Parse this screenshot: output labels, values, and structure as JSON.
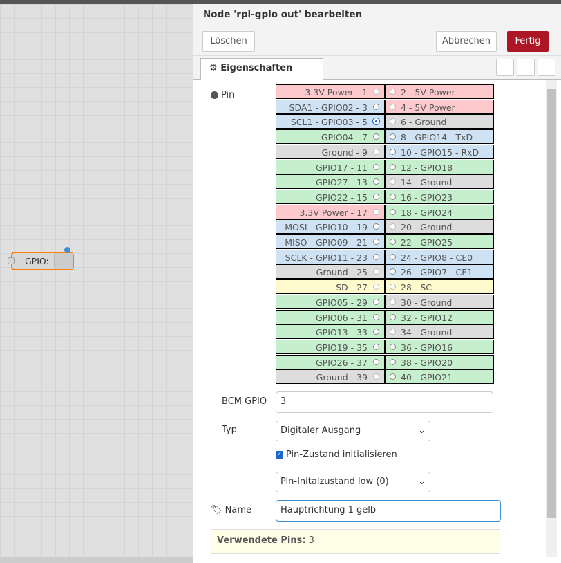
{
  "header": {
    "title": "Node 'rpi-gpio out' bearbeiten"
  },
  "buttons": {
    "delete": "Löschen",
    "cancel": "Abbrechen",
    "done": "Fertig"
  },
  "tabs": {
    "properties": "Eigenschaften"
  },
  "form": {
    "pin_label": "Pin",
    "pins": {
      "left": [
        "3.3V Power - 1",
        "SDA1 - GPIO02 - 3",
        "SCL1 - GPIO03 - 5",
        "GPIO04 - 7",
        "Ground - 9",
        "GPIO17 - 11",
        "GPIO27 - 13",
        "GPIO22 - 15",
        "3.3V Power - 17",
        "MOSI - GPIO10 - 19",
        "MISO - GPIO09 - 21",
        "SCLK - GPIO11 - 23",
        "Ground - 25",
        "SD - 27",
        "GPIO05 - 29",
        "GPIO06 - 31",
        "GPIO13 - 33",
        "GPIO19 - 35",
        "GPIO26 - 37",
        "Ground - 39"
      ],
      "right": [
        "2 - 5V Power",
        "4 - 5V Power",
        "6 - Ground",
        "8 - GPIO14 - TxD",
        "10 - GPIO15 - RxD",
        "12 - GPIO18",
        "14 - Ground",
        "16 - GPIO23",
        "18 - GPIO24",
        "20 - Ground",
        "22 - GPIO25",
        "24 - GPIO8 - CE0",
        "26 - GPIO7 - CE1",
        "28 - SC",
        "30 - Ground",
        "32 - GPIO12",
        "34 - Ground",
        "36 - GPIO16",
        "38 - GPIO20",
        "40 - GPIO21"
      ]
    },
    "bcm_label": "BCM GPIO",
    "bcm_value": "3",
    "type_label": "Typ",
    "type_value": "Digitaler Ausgang",
    "init_label": "Pin-Zustand initialisieren",
    "init_value": "Pin-Initalzustand low (0)",
    "name_label": "Name",
    "name_value": "Hauptrichtung 1 gelb"
  },
  "info": {
    "label": "Verwendete Pins:",
    "value": "3"
  },
  "canvas": {
    "node_label": "GPIO:"
  }
}
